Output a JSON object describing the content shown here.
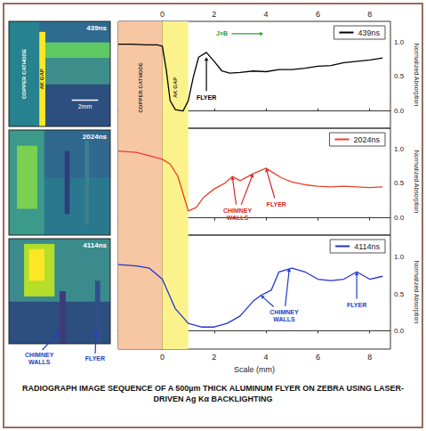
{
  "chart_data": [
    {
      "type": "line",
      "x": [
        -1.7,
        -1.2,
        -0.6,
        -0.2,
        0,
        0.15,
        0.3,
        0.5,
        0.8,
        1.0,
        1.2,
        1.4,
        1.7,
        2.0,
        2.3,
        2.6,
        3.0,
        3.5,
        4.0,
        4.5,
        5.0,
        5.5,
        6.0,
        6.5,
        7.0,
        7.5,
        8.0,
        8.5
      ],
      "series": [
        {
          "name": "439ns",
          "color": "#000000",
          "values": [
            0.97,
            0.97,
            0.96,
            0.96,
            0.94,
            0.6,
            0.15,
            0.02,
            0.0,
            0.15,
            0.5,
            0.78,
            0.85,
            0.72,
            0.58,
            0.55,
            0.56,
            0.58,
            0.57,
            0.6,
            0.6,
            0.62,
            0.65,
            0.66,
            0.7,
            0.72,
            0.74,
            0.77
          ]
        }
      ],
      "xlim": [
        -1.7,
        8.8
      ],
      "xticks": [
        0,
        2,
        4,
        6,
        8
      ],
      "ylim": [
        -0.25,
        1.3
      ],
      "yticks": [
        {
          "value": 0,
          "label": "0.0"
        },
        {
          "value": 0.5,
          "label": "0.5"
        },
        {
          "value": 1,
          "label": "1.0"
        }
      ],
      "ylabel": "Normalized Absorption",
      "grid": false,
      "legend": "upper right",
      "tick_labels": true,
      "regions": [
        {
          "label": "COPPER CATHODE",
          "from": -1.7,
          "to": 0,
          "color": "#f7c6a3"
        },
        {
          "label": "AK GAP",
          "from": 0,
          "to": 1,
          "color": "#fbf28c"
        }
      ],
      "annotations": [
        {
          "text": "J×B",
          "x": 2.3,
          "y": 1.12,
          "targets": [
            [
              3.9,
              1.12
            ]
          ],
          "color": "#2ca02c"
        },
        {
          "text": "FLYER",
          "x": 1.7,
          "y": 0.2,
          "targets": [
            [
              1.7,
              0.78
            ]
          ],
          "color": "#000000"
        }
      ]
    },
    {
      "type": "line",
      "x": [
        -1.7,
        -1.0,
        -0.5,
        0,
        0.3,
        0.6,
        0.8,
        1.0,
        1.3,
        1.6,
        2.0,
        2.4,
        2.7,
        3.0,
        3.5,
        4.0,
        4.3,
        4.6,
        5.0,
        5.5,
        6.0,
        6.5,
        7.0,
        7.5,
        8.0,
        8.5
      ],
      "series": [
        {
          "name": "2024ns",
          "color": "#e8412c",
          "values": [
            0.97,
            0.95,
            0.9,
            0.85,
            0.78,
            0.6,
            0.35,
            0.1,
            0.15,
            0.3,
            0.42,
            0.5,
            0.6,
            0.54,
            0.64,
            0.72,
            0.65,
            0.58,
            0.52,
            0.48,
            0.46,
            0.45,
            0.46,
            0.45,
            0.44,
            0.45
          ]
        }
      ],
      "xlim": [
        -1.7,
        8.8
      ],
      "xticks": [
        0,
        2,
        4,
        6,
        8
      ],
      "ylim": [
        -0.25,
        1.3
      ],
      "yticks": [
        {
          "value": 0,
          "label": "0.0"
        },
        {
          "value": 0.5,
          "label": "0.5"
        },
        {
          "value": 1,
          "label": "1.0"
        }
      ],
      "ylabel": "Normalized Absorption",
      "grid": false,
      "legend": "upper right",
      "tick_labels": "y",
      "regions": [
        {
          "from": -1.7,
          "to": 0,
          "color": "#f7c6a3"
        },
        {
          "from": 0,
          "to": 1,
          "color": "#fbf28c"
        }
      ],
      "annotations": [
        {
          "text": "CHIMNEY WALLS",
          "x": 2.9,
          "y": 0.05,
          "targets": [
            [
              2.7,
              0.6
            ],
            [
              3.5,
              0.64
            ]
          ],
          "color": "#d62728"
        },
        {
          "text": "FLYER",
          "x": 4.4,
          "y": 0.2,
          "targets": [
            [
              4.0,
              0.72
            ]
          ],
          "color": "#d62728"
        }
      ]
    },
    {
      "type": "line",
      "x": [
        -1.7,
        -1.0,
        -0.5,
        0,
        0.5,
        1.0,
        1.5,
        2.0,
        2.5,
        3.0,
        3.5,
        3.8,
        4.2,
        4.5,
        5.0,
        5.5,
        6.0,
        6.5,
        7.0,
        7.5,
        8.0,
        8.5
      ],
      "series": [
        {
          "name": "4114ns",
          "color": "#2233cc",
          "values": [
            0.9,
            0.88,
            0.85,
            0.7,
            0.3,
            0.1,
            0.05,
            0.05,
            0.1,
            0.2,
            0.4,
            0.48,
            0.55,
            0.8,
            0.85,
            0.8,
            0.7,
            0.68,
            0.7,
            0.8,
            0.7,
            0.74
          ]
        }
      ],
      "xlim": [
        -1.7,
        8.8
      ],
      "xticks": [
        0,
        2,
        4,
        6,
        8
      ],
      "ylim": [
        -0.25,
        1.3
      ],
      "yticks": [
        {
          "value": 0,
          "label": "0.0"
        },
        {
          "value": 0.5,
          "label": "0.5"
        },
        {
          "value": 1,
          "label": "1.0"
        }
      ],
      "xlabel": "Scale (mm)",
      "ylabel": "Normalized Absorption",
      "grid": false,
      "legend": "upper right",
      "tick_labels": true,
      "regions": [
        {
          "from": -1.7,
          "to": 0,
          "color": "#f7c6a3"
        },
        {
          "from": 0,
          "to": 1,
          "color": "#fbf28c"
        }
      ],
      "annotations": [
        {
          "text": "CHIMNEY WALLS",
          "x": 4.7,
          "y": 0.2,
          "targets": [
            [
              3.8,
              0.48
            ],
            [
              4.9,
              0.85
            ]
          ],
          "color": "#1f3fbf"
        },
        {
          "text": "FLYER",
          "x": 7.5,
          "y": 0.35,
          "targets": [
            [
              7.5,
              0.8
            ]
          ],
          "color": "#1f3fbf"
        }
      ]
    }
  ],
  "images": [
    {
      "label": "439ns",
      "annotations": [
        "COPPER CATHODE",
        "AK GAP"
      ],
      "scale_bar": "2mm"
    },
    {
      "label": "2024ns"
    },
    {
      "label": "4114ns",
      "callouts": [
        "CHIMNEY WALLS",
        "FLYER"
      ],
      "callout_color": "#1f3fbf"
    }
  ],
  "caption": "RADIOGRAPH IMAGE SEQUENCE OF A 500µm THICK ALUMINUM FLYER ON ZEBRA USING LASER-DRIVEN Ag Kα BACKLIGHTING"
}
